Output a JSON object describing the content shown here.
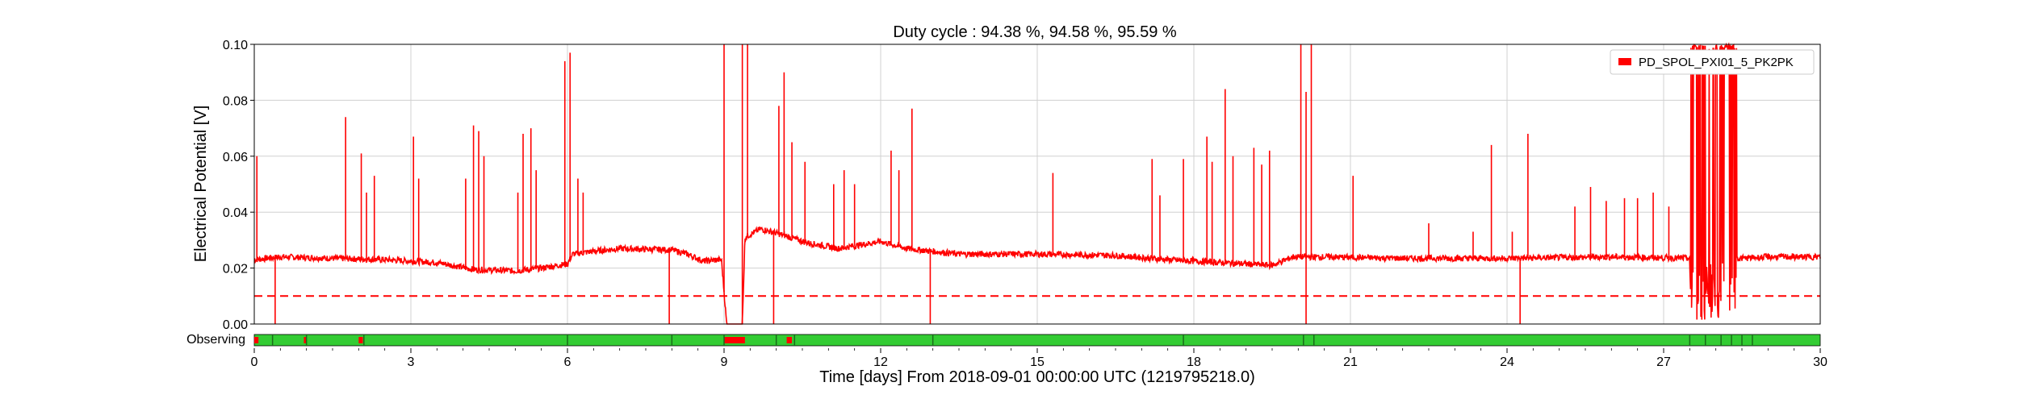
{
  "chart_data": {
    "type": "line",
    "title": "Duty cycle : 94.38 %, 94.58 %, 95.59 %",
    "xlabel": "Time [days] From 2018-09-01 00:00:00 UTC (1219795218.0)",
    "ylabel": "Electrical Potential [V]",
    "xlim": [
      0,
      30
    ],
    "ylim": [
      0,
      0.1
    ],
    "x_ticks": [
      "0",
      "3",
      "6",
      "9",
      "12",
      "15",
      "18",
      "21",
      "24",
      "27",
      "30"
    ],
    "y_ticks": [
      "0.00",
      "0.02",
      "0.04",
      "0.06",
      "0.08",
      "0.10"
    ],
    "grid": true,
    "legend_position": "top-right",
    "threshold": 0.01,
    "colors": {
      "series": "#ff0000",
      "observing": "#33cc33",
      "gap": "#ff0000",
      "seg_edge": "#1a6b1a"
    },
    "series": [
      {
        "name": "PD_SPOL_PXI01_5_PK2PK",
        "baseline": [
          [
            0,
            0.023
          ],
          [
            0.5,
            0.024
          ],
          [
            1.5,
            0.0235
          ],
          [
            2.5,
            0.023
          ],
          [
            3.5,
            0.022
          ],
          [
            4.2,
            0.0195
          ],
          [
            5.0,
            0.019
          ],
          [
            5.5,
            0.02
          ],
          [
            6.0,
            0.0215
          ],
          [
            6.1,
            0.025
          ],
          [
            6.5,
            0.026
          ],
          [
            7.0,
            0.027
          ],
          [
            8.0,
            0.0265
          ],
          [
            8.3,
            0.025
          ],
          [
            8.6,
            0.0225
          ],
          [
            8.95,
            0.023
          ],
          [
            9.05,
            0.0
          ],
          [
            9.35,
            0.0
          ],
          [
            9.4,
            0.031
          ],
          [
            9.7,
            0.034
          ],
          [
            10.1,
            0.032
          ],
          [
            10.6,
            0.029
          ],
          [
            11.2,
            0.027
          ],
          [
            12.0,
            0.0295
          ],
          [
            12.5,
            0.027
          ],
          [
            13.5,
            0.025
          ],
          [
            15.0,
            0.025
          ],
          [
            16.5,
            0.0245
          ],
          [
            17.5,
            0.023
          ],
          [
            18.5,
            0.022
          ],
          [
            19.5,
            0.021
          ],
          [
            19.9,
            0.024
          ],
          [
            20.5,
            0.024
          ],
          [
            22.0,
            0.0235
          ],
          [
            24.0,
            0.0235
          ],
          [
            26.0,
            0.024
          ],
          [
            27.5,
            0.0235
          ],
          [
            28.5,
            0.0235
          ],
          [
            29.0,
            0.024
          ],
          [
            30.0,
            0.024
          ]
        ],
        "spikes": [
          [
            0.05,
            0.06
          ],
          [
            1.75,
            0.074
          ],
          [
            2.05,
            0.061
          ],
          [
            2.15,
            0.047
          ],
          [
            2.3,
            0.053
          ],
          [
            3.05,
            0.067
          ],
          [
            3.15,
            0.052
          ],
          [
            4.05,
            0.052
          ],
          [
            4.2,
            0.071
          ],
          [
            4.3,
            0.069
          ],
          [
            4.4,
            0.06
          ],
          [
            5.05,
            0.047
          ],
          [
            5.15,
            0.068
          ],
          [
            5.3,
            0.07
          ],
          [
            5.4,
            0.055
          ],
          [
            5.95,
            0.094
          ],
          [
            6.05,
            0.097
          ],
          [
            6.2,
            0.052
          ],
          [
            6.3,
            0.047
          ],
          [
            9.0,
            0.1
          ],
          [
            9.35,
            0.1
          ],
          [
            9.45,
            0.1
          ],
          [
            10.05,
            0.078
          ],
          [
            10.15,
            0.09
          ],
          [
            10.3,
            0.065
          ],
          [
            10.55,
            0.058
          ],
          [
            11.1,
            0.05
          ],
          [
            11.3,
            0.055
          ],
          [
            11.5,
            0.05
          ],
          [
            12.2,
            0.062
          ],
          [
            12.35,
            0.055
          ],
          [
            12.6,
            0.077
          ],
          [
            15.3,
            0.054
          ],
          [
            17.2,
            0.059
          ],
          [
            17.35,
            0.046
          ],
          [
            17.8,
            0.059
          ],
          [
            18.25,
            0.067
          ],
          [
            18.35,
            0.058
          ],
          [
            18.6,
            0.084
          ],
          [
            18.75,
            0.06
          ],
          [
            19.15,
            0.063
          ],
          [
            19.3,
            0.057
          ],
          [
            19.45,
            0.062
          ],
          [
            20.05,
            0.1
          ],
          [
            20.15,
            0.083
          ],
          [
            20.25,
            0.1
          ],
          [
            21.05,
            0.053
          ],
          [
            22.5,
            0.036
          ],
          [
            23.35,
            0.033
          ],
          [
            23.7,
            0.064
          ],
          [
            24.1,
            0.033
          ],
          [
            24.4,
            0.068
          ],
          [
            25.3,
            0.042
          ],
          [
            25.6,
            0.049
          ],
          [
            25.9,
            0.044
          ],
          [
            26.25,
            0.045
          ],
          [
            26.5,
            0.045
          ],
          [
            26.8,
            0.047
          ],
          [
            27.1,
            0.042
          ]
        ],
        "dips": [
          [
            0.4,
            0.0
          ],
          [
            7.95,
            0.0
          ],
          [
            9.95,
            0.0
          ],
          [
            12.95,
            0.0
          ],
          [
            20.15,
            0.0
          ],
          [
            24.25,
            0.0
          ]
        ],
        "noisy_band": [
          27.5,
          28.4
        ]
      }
    ],
    "segments": {
      "label": "Observing",
      "gaps": [
        [
          0.0,
          0.08
        ],
        [
          0.95,
          1.0
        ],
        [
          2.0,
          2.08
        ],
        [
          9.0,
          9.4
        ],
        [
          10.2,
          10.3
        ]
      ],
      "edges": [
        0.35,
        1.0,
        2.1,
        6.0,
        8.0,
        9.0,
        10.0,
        10.35,
        13.0,
        17.8,
        20.1,
        20.3,
        27.5,
        27.8,
        28.1,
        28.3,
        28.5,
        28.7
      ]
    }
  }
}
